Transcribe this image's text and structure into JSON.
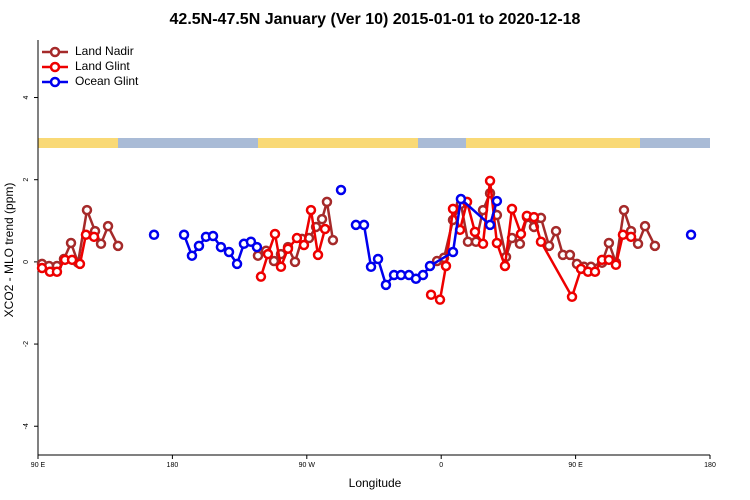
{
  "chart_data": {
    "type": "line",
    "title": "42.5N-47.5N January (Ver 10)   2015-01-01 to 2020-12-18",
    "x_label": "Longitude",
    "y_label": "XCO2 - MLO trend (ppm)",
    "xlim": [
      90,
      540
    ],
    "xticks": [
      {
        "value": 90,
        "label": "90 E"
      },
      180,
      {
        "value": 270,
        "label": "90 W"
      },
      {
        "value": 360,
        "label": "0"
      },
      {
        "value": 450,
        "label": "90 E"
      },
      {
        "value": 540,
        "label": "180"
      }
    ],
    "ylim": [
      -4.7,
      5.4
    ],
    "yticks": [
      -4,
      -2,
      0,
      2,
      4
    ],
    "grid": false,
    "legend": "top-left",
    "series": [
      {
        "name": "Land Nadir",
        "color": "#a52a2a",
        "x": [
          92.7,
          97.4,
          102.7,
          107.4,
          112.1,
          116.8,
          122.8,
          128.2,
          132.2,
          136.9,
          143.6,
          null,
          237.3,
          242.7,
          248.0,
          252.7,
          257.4,
          262.1,
          266.8,
          271.5,
          276.2,
          280.2,
          283.5,
          287.5,
          null,
          357.2,
          361.9,
          367.9,
          373.2,
          377.9,
          383.3,
          388.0,
          392.7,
          397.3,
          403.4,
          407.4,
          412.7,
          417.4,
          422.1,
          426.8,
          432.2,
          436.9,
          441.5,
          446.2,
          450.9,
          455.6,
          460.3,
          467.7,
          472.3,
          477.0,
          482.4,
          487.1,
          491.8,
          496.5,
          503.1
        ],
        "values": [
          -0.05,
          -0.1,
          -0.1,
          0.07,
          0.46,
          -0.02,
          1.26,
          0.75,
          0.44,
          0.87,
          0.39,
          null,
          0.15,
          0.27,
          0.02,
          0.19,
          0.36,
          0,
          0.56,
          0.58,
          0.85,
          1.04,
          1.46,
          0.53,
          null,
          0.02,
          0.1,
          1.02,
          1.41,
          0.49,
          0.49,
          1.26,
          1.67,
          1.14,
          0.12,
          0.58,
          0.44,
          1.09,
          0.85,
          1.07,
          0.39,
          0.75,
          0.17,
          0.17,
          -0.05,
          -0.12,
          -0.12,
          -0.02,
          0.46,
          -0.02,
          1.26,
          0.75,
          0.44,
          0.87,
          0.39
        ]
      },
      {
        "name": "Land Glint",
        "color": "#ee0000",
        "x": [
          92.7,
          98.0,
          102.7,
          108.1,
          112.8,
          118.1,
          122.1,
          127.5,
          null,
          239.3,
          244.0,
          248.7,
          252.7,
          257.4,
          263.4,
          268.1,
          272.8,
          277.5,
          282.2,
          null,
          353.2,
          359.2,
          363.2,
          367.9,
          372.6,
          377.3,
          382.6,
          388.0,
          392.7,
          397.3,
          402.7,
          407.4,
          413.4,
          417.4,
          422.1,
          426.8,
          447.6,
          453.6,
          458.3,
          463.0,
          467.7,
          472.3,
          477.0,
          481.7,
          487.1
        ],
        "values": [
          -0.15,
          -0.24,
          -0.24,
          0.05,
          0.05,
          -0.05,
          0.66,
          0.61,
          null,
          -0.36,
          0.19,
          0.68,
          -0.12,
          0.32,
          0.58,
          0.41,
          1.26,
          0.17,
          0.8,
          null,
          -0.8,
          -0.92,
          -0.1,
          1.29,
          0.78,
          1.46,
          0.73,
          0.44,
          1.97,
          0.46,
          -0.1,
          1.29,
          0.68,
          1.12,
          1.09,
          0.49,
          -0.85,
          -0.17,
          -0.24,
          -0.24,
          0.05,
          0.05,
          -0.07,
          0.66,
          0.61
        ]
      },
      {
        "name": "Ocean Glint",
        "color": "#0000ee",
        "x": [
          167.7,
          null,
          187.8,
          193.1,
          197.8,
          202.5,
          207.2,
          212.5,
          217.9,
          223.3,
          227.9,
          232.6,
          236.6,
          null,
          292.9,
          null,
          302.9,
          308.3,
          313.0,
          317.7,
          323.0,
          328.4,
          333.1,
          338.4,
          343.1,
          347.8,
          352.5,
          367.9,
          373.2,
          392.7,
          397.3,
          null,
          527.3
        ],
        "values": [
          0.66,
          null,
          0.66,
          0.15,
          0.39,
          0.61,
          0.63,
          0.36,
          0.24,
          -0.05,
          0.44,
          0.49,
          0.36,
          null,
          1.75,
          null,
          0.9,
          0.9,
          -0.12,
          0.07,
          -0.56,
          -0.32,
          -0.32,
          -0.32,
          -0.41,
          -0.32,
          -0.1,
          0.24,
          1.53,
          0.9,
          1.48,
          null,
          0.66
        ]
      }
    ]
  }
}
